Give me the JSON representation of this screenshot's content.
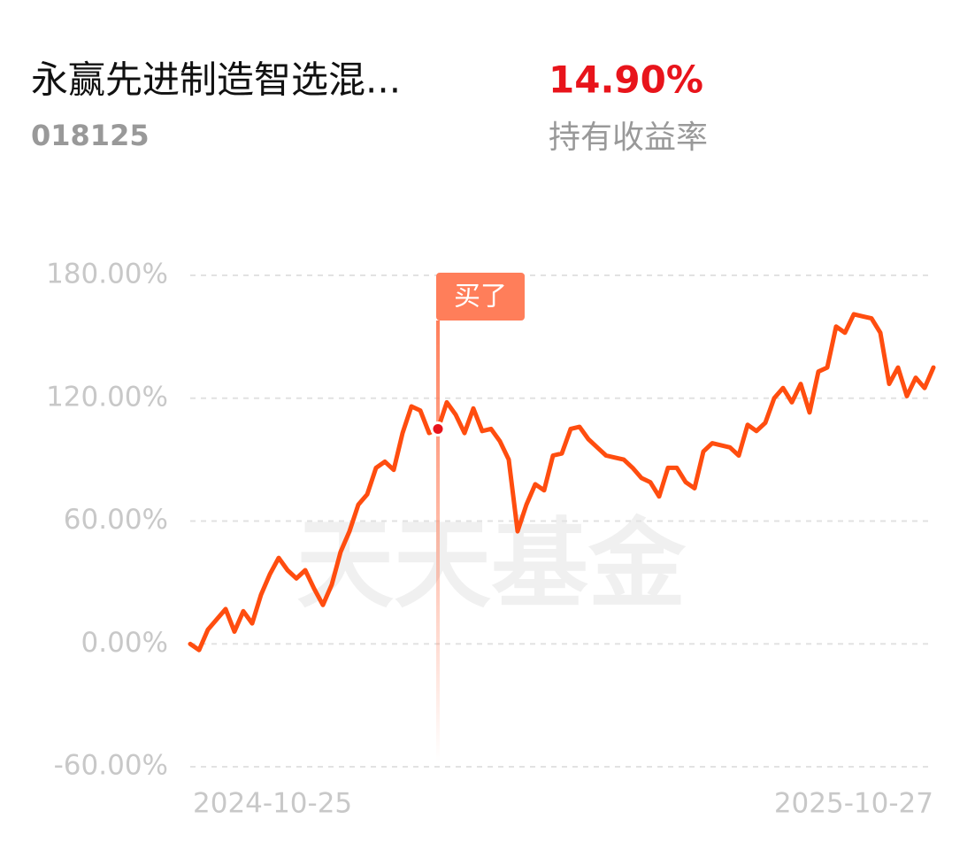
{
  "header": {
    "title": "永赢先进制造智选混...",
    "code": "018125",
    "return_value": "14.90%",
    "return_label": "持有收益率"
  },
  "chart_data": {
    "type": "line",
    "watermark": "天天基金",
    "categories": [
      "2024-10-25",
      null,
      null,
      null,
      null,
      null,
      null,
      null,
      null,
      null,
      null,
      null,
      null,
      null,
      null,
      null,
      null,
      null,
      null,
      null,
      null,
      null,
      null,
      null,
      null,
      null,
      null,
      null,
      null,
      null,
      null,
      null,
      null,
      null,
      null,
      null,
      null,
      null,
      null,
      null,
      null,
      null,
      null,
      null,
      null,
      null,
      null,
      null,
      null,
      null,
      null,
      null,
      null,
      null,
      null,
      null,
      null,
      null,
      null,
      null,
      null,
      null,
      null,
      null,
      null,
      null,
      null,
      null,
      null,
      null,
      null,
      null,
      null,
      null,
      null,
      null,
      null,
      null,
      null,
      null,
      null,
      null,
      null,
      null,
      "2025-10-27"
    ],
    "series": [
      {
        "color": "#ff4d0f",
        "values": [
          0,
          -3,
          7,
          12,
          17,
          6,
          16,
          10,
          24,
          34,
          42,
          36,
          32,
          36,
          27,
          19,
          29,
          45,
          55,
          68,
          73,
          86,
          89,
          85,
          103,
          116,
          114,
          103,
          105,
          118,
          112,
          103,
          115,
          104,
          105,
          99,
          90,
          55,
          68,
          78,
          75,
          92,
          93,
          105,
          106,
          100,
          96,
          92,
          91,
          90,
          86,
          81,
          79,
          72,
          86,
          86,
          79,
          76,
          94,
          98,
          97,
          96,
          92,
          107,
          104,
          108,
          120,
          125,
          118,
          127,
          113,
          133,
          135,
          155,
          152,
          161,
          160,
          159,
          152,
          127,
          135,
          121,
          130,
          125,
          135
        ]
      }
    ],
    "annotation": {
      "text": "买了",
      "index": 28,
      "color": "#ff7e5a"
    },
    "ylim": [
      -60,
      180
    ],
    "yticks": [
      {
        "value": -60,
        "label": "-60.00%"
      },
      {
        "value": 0,
        "label": "0.00%"
      },
      {
        "value": 60,
        "label": "60.00%"
      },
      {
        "value": 120,
        "label": "120.00%"
      },
      {
        "value": 180,
        "label": "180.00%"
      }
    ],
    "grid": true
  }
}
